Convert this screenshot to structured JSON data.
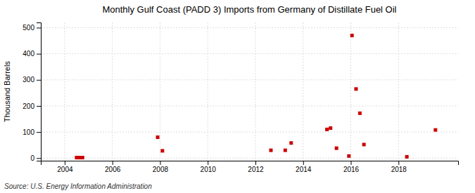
{
  "chart_data": {
    "type": "scatter",
    "title": "Monthly Gulf Coast (PADD 3) Imports from Germany of Distillate Fuel Oil",
    "ylabel": "Thousand Barrels",
    "source": "Source: U.S. Energy Information Administration",
    "x": [
      2004.5,
      2004.55,
      2004.6,
      2004.65,
      2004.7,
      2004.75,
      2007.9,
      2008.1,
      2012.65,
      2013.25,
      2013.5,
      2015.0,
      2015.15,
      2015.4,
      2015.92,
      2016.05,
      2016.22,
      2016.38,
      2016.55,
      2018.35,
      2019.55
    ],
    "values": [
      2,
      2,
      2,
      2,
      2,
      2,
      80,
      28,
      30,
      30,
      58,
      110,
      115,
      38,
      8,
      470,
      265,
      172,
      52,
      5,
      108
    ],
    "color": "#cc0000",
    "marker": "square",
    "xlim": [
      2003.0,
      2020.5
    ],
    "ylim": [
      -10,
      520
    ],
    "xticks": [
      2004,
      2006,
      2008,
      2010,
      2012,
      2014,
      2016,
      2018
    ],
    "yticks": [
      0,
      100,
      200,
      300,
      400,
      500
    ],
    "grid": true
  }
}
